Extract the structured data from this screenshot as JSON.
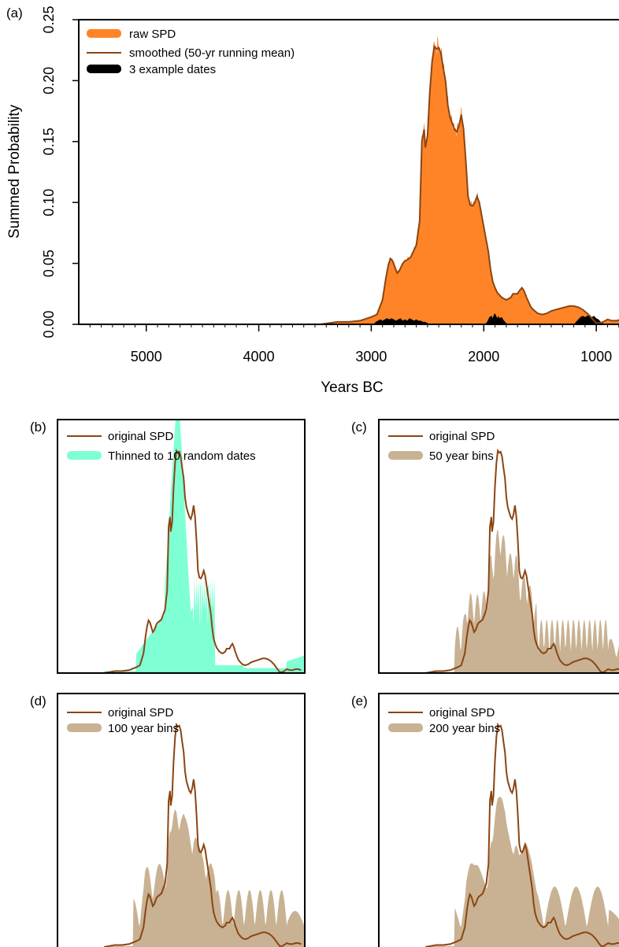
{
  "colors": {
    "raw_spd": "#FF8427",
    "smoothed": "#8B4513",
    "example_dates": "#000000",
    "thinned": "#7FFFD4",
    "bins": "#C8B293"
  },
  "chart_data": [
    {
      "id": "a",
      "panel_label": "(a)",
      "type": "area",
      "xlabel": "Years BC",
      "ylabel": "Summed Probability",
      "xlim": [
        5600,
        700
      ],
      "ylim": [
        0,
        0.25
      ],
      "x_ticks": [
        5000,
        4000,
        3000,
        2000,
        1000
      ],
      "x_tick_labels": [
        "5000",
        "4000",
        "3000",
        "2000",
        "1000"
      ],
      "y_ticks": [
        0.0,
        0.05,
        0.1,
        0.15,
        0.2,
        0.25
      ],
      "y_tick_labels": [
        "0.00",
        "0.05",
        "0.10",
        "0.15",
        "0.20",
        "0.25"
      ],
      "legend_position": "top-left",
      "legend": [
        "raw SPD",
        "smoothed (50-yr running mean)",
        "3 example dates"
      ],
      "series": [
        {
          "name": "smoothed (50-yr running mean)",
          "x": [
            3450,
            3380,
            3300,
            3200,
            3100,
            3000,
            2950,
            2900,
            2870,
            2850,
            2830,
            2810,
            2790,
            2770,
            2750,
            2720,
            2700,
            2680,
            2650,
            2600,
            2570,
            2550,
            2530,
            2520,
            2500,
            2480,
            2460,
            2440,
            2420,
            2400,
            2380,
            2360,
            2340,
            2320,
            2300,
            2280,
            2260,
            2240,
            2220,
            2200,
            2180,
            2160,
            2140,
            2120,
            2100,
            2080,
            2060,
            2040,
            2020,
            2000,
            1980,
            1960,
            1940,
            1920,
            1900,
            1880,
            1860,
            1840,
            1820,
            1800,
            1780,
            1760,
            1740,
            1720,
            1700,
            1680,
            1660,
            1640,
            1620,
            1600,
            1580,
            1560,
            1520,
            1480,
            1440,
            1400,
            1360,
            1320,
            1280,
            1240,
            1200,
            1160,
            1120,
            1080,
            1050,
            1020,
            1000,
            980,
            960,
            940,
            920,
            900,
            860,
            820,
            780,
            740,
            700
          ],
          "y": [
            0.0,
            0.001,
            0.002,
            0.002,
            0.003,
            0.006,
            0.008,
            0.02,
            0.038,
            0.048,
            0.054,
            0.052,
            0.047,
            0.042,
            0.044,
            0.05,
            0.052,
            0.053,
            0.055,
            0.065,
            0.085,
            0.15,
            0.16,
            0.145,
            0.155,
            0.19,
            0.215,
            0.228,
            0.226,
            0.227,
            0.222,
            0.21,
            0.2,
            0.18,
            0.17,
            0.165,
            0.16,
            0.158,
            0.163,
            0.172,
            0.16,
            0.135,
            0.105,
            0.098,
            0.097,
            0.1,
            0.105,
            0.1,
            0.09,
            0.08,
            0.07,
            0.06,
            0.045,
            0.035,
            0.03,
            0.026,
            0.024,
            0.022,
            0.021,
            0.02,
            0.021,
            0.022,
            0.025,
            0.025,
            0.025,
            0.028,
            0.03,
            0.027,
            0.022,
            0.018,
            0.014,
            0.012,
            0.009,
            0.008,
            0.009,
            0.011,
            0.012,
            0.013,
            0.014,
            0.015,
            0.015,
            0.014,
            0.012,
            0.009,
            0.006,
            0.003,
            0.001,
            0.001,
            0.001,
            0.002,
            0.003,
            0.004,
            0.003,
            0.003,
            0.004,
            0.004,
            0.003
          ]
        },
        {
          "name": "3 example dates",
          "peaks": [
            {
              "x": [
                2980,
                2960,
                2940,
                2920,
                2900,
                2880,
                2860,
                2840,
                2820,
                2800,
                2780,
                2760,
                2740,
                2720,
                2700,
                2680,
                2660,
                2640,
                2620,
                2600,
                2580,
                2560,
                2540,
                2520,
                2500,
                2480
              ],
              "y": [
                0.0,
                0.002,
                0.003,
                0.004,
                0.003,
                0.004,
                0.005,
                0.004,
                0.005,
                0.004,
                0.003,
                0.004,
                0.005,
                0.003,
                0.004,
                0.003,
                0.005,
                0.004,
                0.003,
                0.004,
                0.003,
                0.003,
                0.002,
                0.002,
                0.001,
                0.0
              ]
            },
            {
              "x": [
                1990,
                1970,
                1950,
                1930,
                1920,
                1910,
                1900,
                1890,
                1880,
                1870,
                1860,
                1840,
                1820,
                1800,
                1790
              ],
              "y": [
                0.0,
                0.002,
                0.006,
                0.007,
                0.005,
                0.008,
                0.009,
                0.007,
                0.005,
                0.007,
                0.005,
                0.006,
                0.003,
                0.001,
                0.0
              ]
            },
            {
              "x": [
                1200,
                1180,
                1160,
                1140,
                1120,
                1100,
                1080,
                1060,
                1040,
                1020,
                1000,
                980,
                960,
                940,
                930
              ],
              "y": [
                0.0,
                0.002,
                0.004,
                0.006,
                0.007,
                0.006,
                0.007,
                0.008,
                0.006,
                0.007,
                0.005,
                0.004,
                0.002,
                0.001,
                0.0
              ]
            }
          ]
        }
      ]
    },
    {
      "id": "b",
      "panel_label": "(b)",
      "type": "area",
      "legend": [
        "original SPD",
        "Thinned to 10 random dates"
      ]
    },
    {
      "id": "c",
      "panel_label": "(c)",
      "type": "area",
      "legend": [
        "original SPD",
        "50 year bins"
      ]
    },
    {
      "id": "d",
      "panel_label": "(d)",
      "type": "area",
      "legend": [
        "original SPD",
        "100 year bins"
      ]
    },
    {
      "id": "e",
      "panel_label": "(e)",
      "type": "area",
      "legend": [
        "original SPD",
        "200 year bins"
      ]
    }
  ]
}
